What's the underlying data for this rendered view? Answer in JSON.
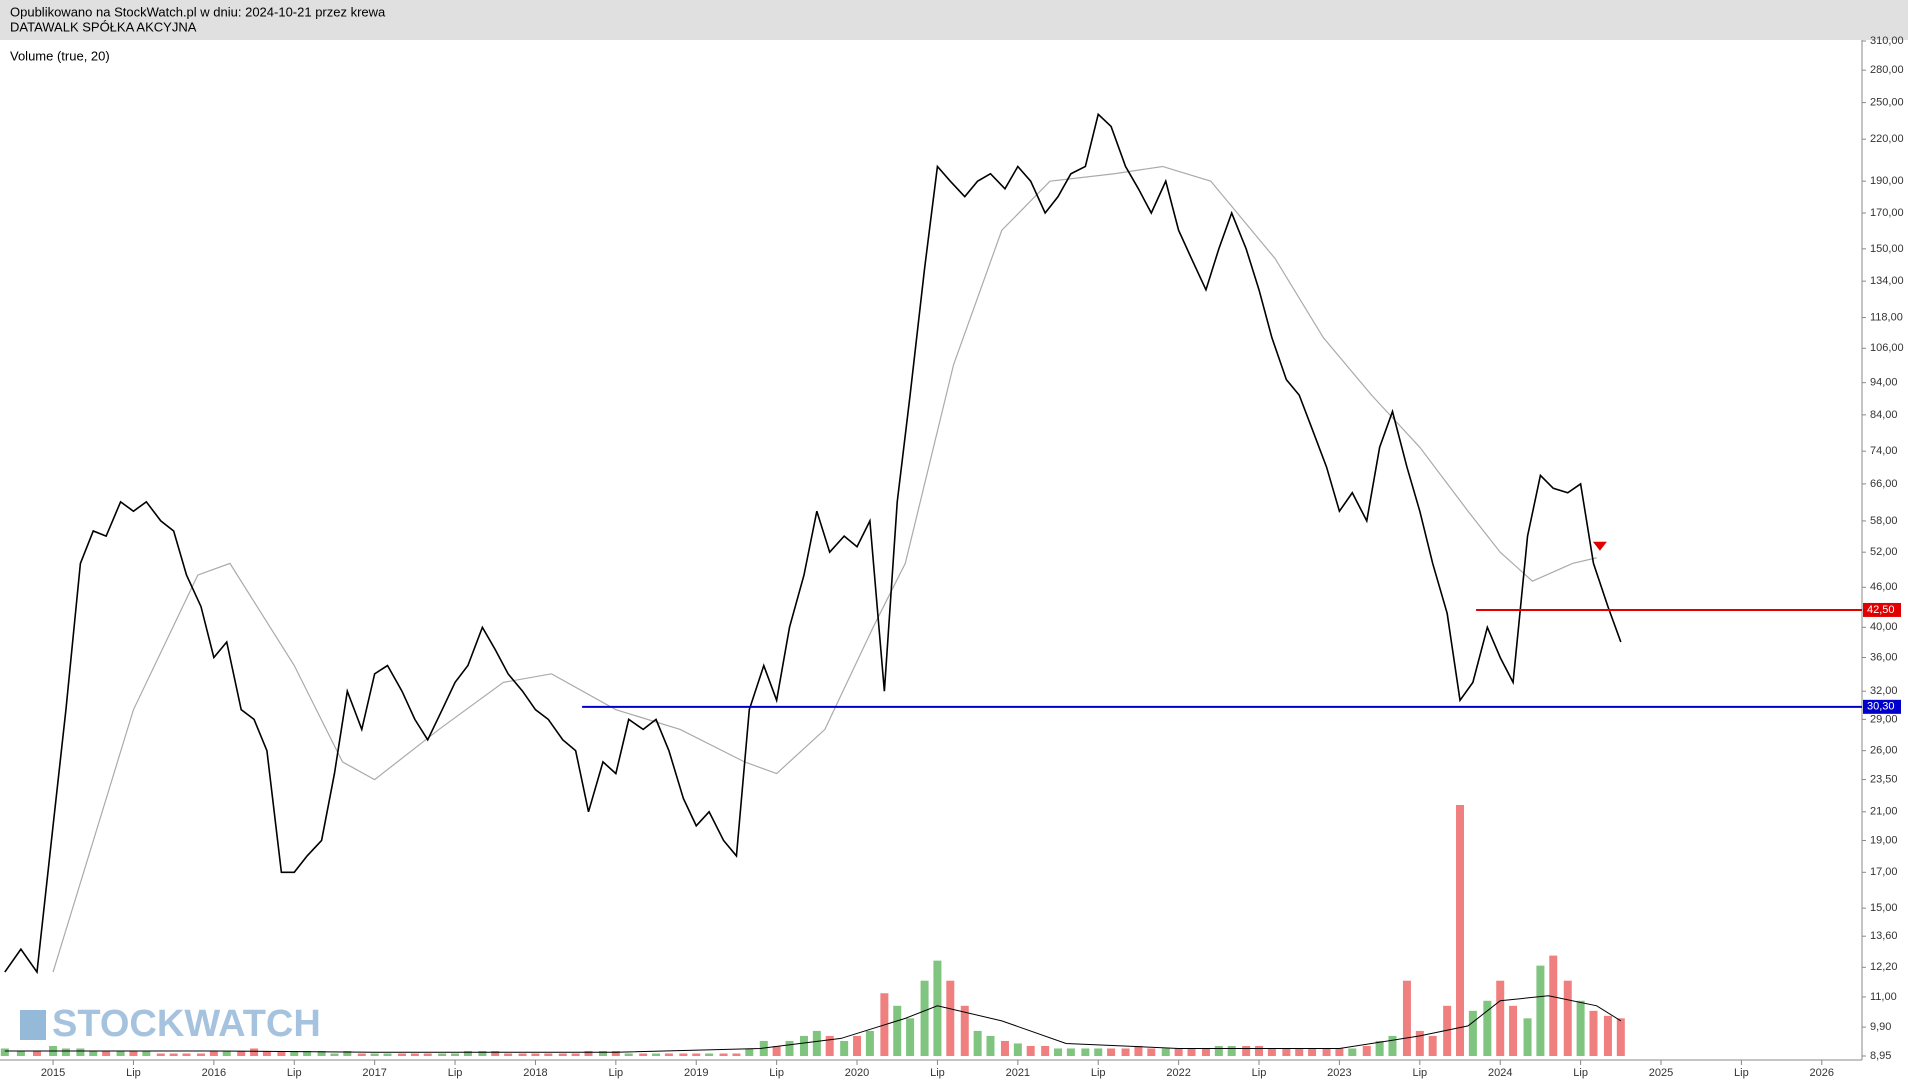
{
  "chart_data": {
    "type": "stock",
    "title": "Opublikowano na StockWatch.pl w dniu: 2024-10-21 przez krewa",
    "subtitle": "DATAWALK SPÓŁKA AKCYJNA",
    "indicator_label": "Volume (true, 20)",
    "watermark": "STOCKWATCH",
    "log_scale": true,
    "xlim": [
      2014.67,
      2026.25
    ],
    "ylim": [
      8.95,
      310
    ],
    "volume_lim": [
      0,
      100
    ],
    "xticks": [
      {
        "value": 2015,
        "label": "2015"
      },
      {
        "value": 2015.5,
        "label": "Lip"
      },
      {
        "value": 2016,
        "label": "2016"
      },
      {
        "value": 2016.5,
        "label": "Lip"
      },
      {
        "value": 2017,
        "label": "2017"
      },
      {
        "value": 2017.5,
        "label": "Lip"
      },
      {
        "value": 2018,
        "label": "2018"
      },
      {
        "value": 2018.5,
        "label": "Lip"
      },
      {
        "value": 2019,
        "label": "2019"
      },
      {
        "value": 2019.5,
        "label": "Lip"
      },
      {
        "value": 2020,
        "label": "2020"
      },
      {
        "value": 2020.5,
        "label": "Lip"
      },
      {
        "value": 2021,
        "label": "2021"
      },
      {
        "value": 2021.5,
        "label": "Lip"
      },
      {
        "value": 2022,
        "label": "2022"
      },
      {
        "value": 2022.5,
        "label": "Lip"
      },
      {
        "value": 2023,
        "label": "2023"
      },
      {
        "value": 2023.5,
        "label": "Lip"
      },
      {
        "value": 2024,
        "label": "2024"
      },
      {
        "value": 2024.5,
        "label": "Lip"
      },
      {
        "value": 2025,
        "label": "2025"
      },
      {
        "value": 2025.5,
        "label": "Lip"
      },
      {
        "value": 2026,
        "label": "2026"
      }
    ],
    "yticks": [
      {
        "value": 310,
        "label": "310,00"
      },
      {
        "value": 280,
        "label": "280,00"
      },
      {
        "value": 250,
        "label": "250,00"
      },
      {
        "value": 220,
        "label": "220,00"
      },
      {
        "value": 190,
        "label": "190,00"
      },
      {
        "value": 170,
        "label": "170,00"
      },
      {
        "value": 150,
        "label": "150,00"
      },
      {
        "value": 134,
        "label": "134,00"
      },
      {
        "value": 118,
        "label": "118,00"
      },
      {
        "value": 106,
        "label": "106,00"
      },
      {
        "value": 94,
        "label": "94,00"
      },
      {
        "value": 84,
        "label": "84,00"
      },
      {
        "value": 74,
        "label": "74,00"
      },
      {
        "value": 66,
        "label": "66,00"
      },
      {
        "value": 58,
        "label": "58,00"
      },
      {
        "value": 52,
        "label": "52,00"
      },
      {
        "value": 46,
        "label": "46,00"
      },
      {
        "value": 40,
        "label": "40,00"
      },
      {
        "value": 36,
        "label": "36,00"
      },
      {
        "value": 32,
        "label": "32,00"
      },
      {
        "value": 29,
        "label": "29,00"
      },
      {
        "value": 26,
        "label": "26,00"
      },
      {
        "value": 23.5,
        "label": "23,50"
      },
      {
        "value": 21,
        "label": "21,00"
      },
      {
        "value": 19,
        "label": "19,00"
      },
      {
        "value": 17,
        "label": "17,00"
      },
      {
        "value": 15,
        "label": "15,00"
      },
      {
        "value": 13.6,
        "label": "13,60"
      },
      {
        "value": 12.2,
        "label": "12,20"
      },
      {
        "value": 11,
        "label": "11,00"
      },
      {
        "value": 9.9,
        "label": "9,90"
      },
      {
        "value": 8.95,
        "label": "8,95"
      }
    ],
    "x": [
      2014.7,
      2014.8,
      2014.9,
      2015.0,
      2015.08,
      2015.17,
      2015.25,
      2015.33,
      2015.42,
      2015.5,
      2015.58,
      2015.67,
      2015.75,
      2015.83,
      2015.92,
      2016.0,
      2016.08,
      2016.17,
      2016.25,
      2016.33,
      2016.42,
      2016.5,
      2016.58,
      2016.67,
      2016.75,
      2016.83,
      2016.92,
      2017.0,
      2017.08,
      2017.17,
      2017.25,
      2017.33,
      2017.42,
      2017.5,
      2017.58,
      2017.67,
      2017.75,
      2017.83,
      2017.92,
      2018.0,
      2018.08,
      2018.17,
      2018.25,
      2018.33,
      2018.42,
      2018.5,
      2018.58,
      2018.67,
      2018.75,
      2018.83,
      2018.92,
      2019.0,
      2019.08,
      2019.17,
      2019.25,
      2019.33,
      2019.42,
      2019.5,
      2019.58,
      2019.67,
      2019.75,
      2019.83,
      2019.92,
      2020.0,
      2020.08,
      2020.17,
      2020.25,
      2020.33,
      2020.42,
      2020.5,
      2020.58,
      2020.67,
      2020.75,
      2020.83,
      2020.92,
      2021.0,
      2021.08,
      2021.17,
      2021.25,
      2021.33,
      2021.42,
      2021.5,
      2021.58,
      2021.67,
      2021.75,
      2021.83,
      2021.92,
      2022.0,
      2022.08,
      2022.17,
      2022.25,
      2022.33,
      2022.42,
      2022.5,
      2022.58,
      2022.67,
      2022.75,
      2022.83,
      2022.92,
      2023.0,
      2023.08,
      2023.17,
      2023.25,
      2023.33,
      2023.42,
      2023.5,
      2023.58,
      2023.67,
      2023.75,
      2023.83,
      2023.92,
      2024.0,
      2024.08,
      2024.17,
      2024.25,
      2024.33,
      2024.42,
      2024.5,
      2024.58,
      2024.67,
      2024.75
    ],
    "price": {
      "color": "#000000",
      "values": [
        12,
        13,
        12,
        20,
        30,
        50,
        56,
        55,
        62,
        60,
        62,
        58,
        56,
        48,
        43,
        36,
        38,
        30,
        29,
        26,
        17,
        17,
        18,
        19,
        24,
        32,
        28,
        34,
        35,
        32,
        29,
        27,
        30,
        33,
        35,
        40,
        37,
        34,
        32,
        30,
        29,
        27,
        26,
        21,
        25,
        24,
        29,
        28,
        29,
        26,
        22,
        20,
        21,
        19,
        18,
        30,
        35,
        31,
        40,
        48,
        60,
        52,
        55,
        53,
        58,
        32,
        62,
        90,
        140,
        200,
        190,
        180,
        190,
        195,
        185,
        200,
        190,
        170,
        180,
        195,
        200,
        240,
        230,
        200,
        185,
        170,
        190,
        160,
        145,
        130,
        150,
        170,
        150,
        130,
        110,
        95,
        90,
        80,
        70,
        60,
        64,
        58,
        75,
        85,
        70,
        60,
        50,
        42,
        31,
        33,
        40,
        36,
        33,
        55,
        68,
        65,
        64,
        66,
        50,
        43,
        38
      ]
    },
    "volume": {
      "up_color": "#7fc47f",
      "down_color": "#f08080",
      "values": [
        3,
        2,
        2,
        4,
        3,
        3,
        2,
        2,
        2,
        2,
        2,
        1,
        1,
        1,
        1,
        2,
        2,
        2,
        3,
        2,
        2,
        2,
        2,
        2,
        1,
        2,
        1,
        1,
        1,
        1,
        1,
        1,
        1,
        1,
        2,
        2,
        2,
        1,
        1,
        1,
        1,
        1,
        1,
        2,
        2,
        2,
        1,
        1,
        1,
        1,
        1,
        1,
        1,
        1,
        1,
        3,
        6,
        4,
        6,
        8,
        10,
        8,
        6,
        8,
        10,
        25,
        20,
        15,
        30,
        38,
        30,
        20,
        10,
        8,
        6,
        5,
        4,
        4,
        3,
        3,
        3,
        3,
        3,
        3,
        4,
        3,
        3,
        3,
        3,
        3,
        4,
        4,
        4,
        4,
        3,
        3,
        3,
        3,
        3,
        3,
        3,
        4,
        6,
        8,
        30,
        10,
        8,
        20,
        100,
        18,
        22,
        30,
        20,
        15,
        36,
        40,
        30,
        22,
        18,
        16,
        15
      ]
    },
    "price_ma": {
      "color": "#aaaaaa",
      "x": [
        2015.0,
        2015.5,
        2015.9,
        2016.1,
        2016.5,
        2016.8,
        2017.0,
        2017.4,
        2017.8,
        2018.1,
        2018.5,
        2018.9,
        2019.3,
        2019.5,
        2019.8,
        2020.1,
        2020.3,
        2020.6,
        2020.9,
        2021.2,
        2021.6,
        2021.9,
        2022.2,
        2022.6,
        2022.9,
        2023.2,
        2023.5,
        2023.8,
        2024.0,
        2024.2,
        2024.45,
        2024.6
      ],
      "values": [
        12,
        30,
        48,
        50,
        35,
        25,
        23.5,
        28,
        33,
        34,
        30,
        28,
        25,
        24,
        28,
        40,
        50,
        100,
        160,
        190,
        195,
        200,
        190,
        145,
        110,
        90,
        75,
        60,
        52,
        47,
        50,
        51
      ]
    },
    "volume_ma": {
      "color": "#000000",
      "x": [
        2014.7,
        2016,
        2017,
        2018.5,
        2019.4,
        2019.9,
        2020.3,
        2020.5,
        2020.9,
        2021.3,
        2022,
        2023,
        2023.5,
        2023.8,
        2024.0,
        2024.3,
        2024.6,
        2024.75
      ],
      "values": [
        2,
        2,
        1.5,
        1.5,
        3,
        7,
        15,
        20,
        14,
        5,
        3,
        3,
        8,
        12,
        22,
        24,
        20,
        14
      ]
    },
    "levels": [
      {
        "value": 42.5,
        "label": "42,50",
        "color": "#e00000",
        "x_start": 2023.85
      },
      {
        "value": 30.3,
        "label": "30,30",
        "color": "#0000cc",
        "x_start": 2018.29
      }
    ],
    "markers": [
      {
        "x": 2024.62,
        "value": 53,
        "color": "#e00000"
      }
    ]
  }
}
